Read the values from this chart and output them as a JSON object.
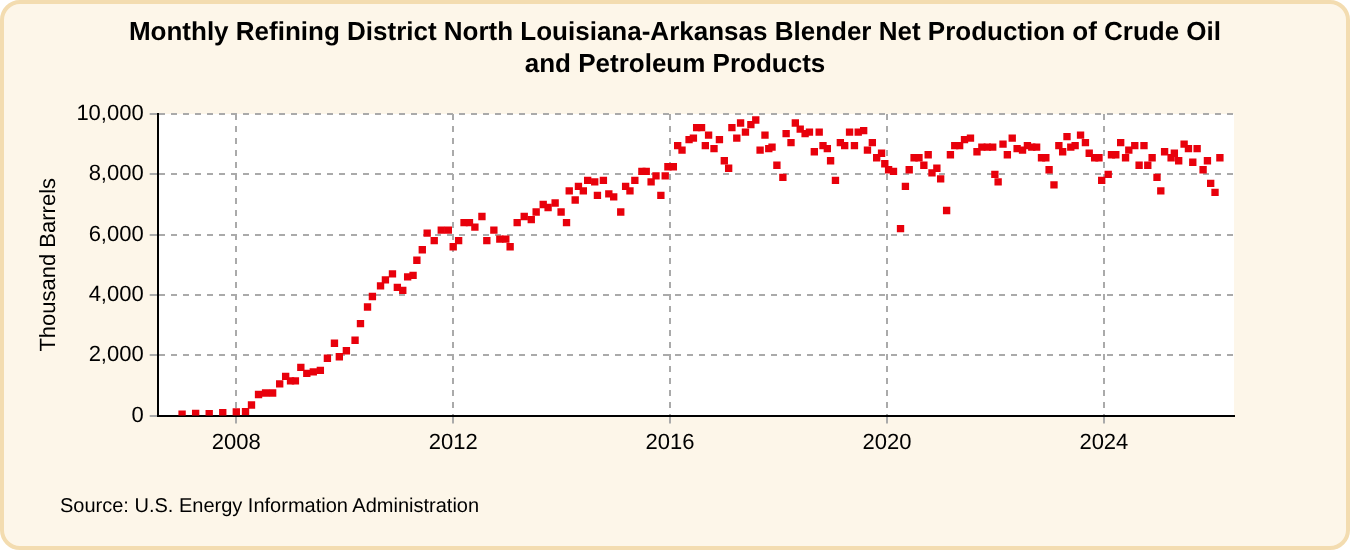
{
  "chart_data": {
    "type": "scatter",
    "title": "Monthly Refining District North Louisiana-Arkansas Blender Net Production of Crude Oil and Petroleum Products",
    "ylabel": "Thousand Barrels",
    "annotations": [
      "Source: U.S. Energy Information Administration"
    ],
    "marker": "square",
    "grid": true,
    "xlim": [
      2006.55,
      2026.4
    ],
    "xticks": [
      2008,
      2012,
      2016,
      2020,
      2024
    ],
    "ylim": [
      0,
      10000
    ],
    "yticks": [
      {
        "value": 0,
        "label": "0"
      },
      {
        "value": 2000,
        "label": "2,000"
      },
      {
        "value": 4000,
        "label": "4,000"
      },
      {
        "value": 6000,
        "label": "6,000"
      },
      {
        "value": 8000,
        "label": "8,000"
      },
      {
        "value": 10000,
        "label": "10,000"
      }
    ],
    "x": [
      2007.0,
      2007.25,
      2007.5,
      2007.75,
      2008.0,
      2008.17,
      2008.28,
      2008.41,
      2008.54,
      2008.67,
      2008.8,
      2008.91,
      2009.0,
      2009.09,
      2009.19,
      2009.3,
      2009.42,
      2009.55,
      2009.68,
      2009.81,
      2009.9,
      2010.03,
      2010.19,
      2010.29,
      2010.42,
      2010.51,
      2010.66,
      2010.75,
      2010.88,
      2010.97,
      2011.07,
      2011.16,
      2011.26,
      2011.33,
      2011.43,
      2011.52,
      2011.65,
      2011.78,
      2011.91,
      2012.0,
      2012.1,
      2012.2,
      2012.3,
      2012.4,
      2012.53,
      2012.62,
      2012.75,
      2012.86,
      2012.97,
      2013.05,
      2013.18,
      2013.31,
      2013.44,
      2013.53,
      2013.66,
      2013.75,
      2013.88,
      2013.99,
      2014.09,
      2014.14,
      2014.25,
      2014.31,
      2014.4,
      2014.48,
      2014.61,
      2014.66,
      2014.77,
      2014.87,
      2014.96,
      2015.09,
      2015.18,
      2015.26,
      2015.35,
      2015.48,
      2015.56,
      2015.65,
      2015.74,
      2015.83,
      2015.91,
      2015.96,
      2016.06,
      2016.14,
      2016.22,
      2016.35,
      2016.43,
      2016.49,
      2016.58,
      2016.65,
      2016.71,
      2016.81,
      2016.91,
      2017.0,
      2017.08,
      2017.14,
      2017.23,
      2017.3,
      2017.39,
      2017.49,
      2017.58,
      2017.66,
      2017.75,
      2017.82,
      2017.88,
      2017.97,
      2018.08,
      2018.14,
      2018.23,
      2018.31,
      2018.4,
      2018.49,
      2018.57,
      2018.66,
      2018.75,
      2018.82,
      2018.9,
      2018.96,
      2019.05,
      2019.14,
      2019.22,
      2019.31,
      2019.4,
      2019.47,
      2019.57,
      2019.64,
      2019.73,
      2019.81,
      2019.9,
      2019.96,
      2020.03,
      2020.12,
      2020.25,
      2020.34,
      2020.41,
      2020.5,
      2020.59,
      2020.68,
      2020.76,
      2020.83,
      2020.92,
      2020.99,
      2021.1,
      2021.17,
      2021.25,
      2021.34,
      2021.43,
      2021.54,
      2021.66,
      2021.75,
      2021.85,
      2021.95,
      2021.99,
      2022.05,
      2022.14,
      2022.22,
      2022.31,
      2022.4,
      2022.5,
      2022.59,
      2022.67,
      2022.76,
      2022.85,
      2022.93,
      2022.99,
      2023.08,
      2023.17,
      2023.24,
      2023.32,
      2023.39,
      2023.47,
      2023.57,
      2023.66,
      2023.73,
      2023.83,
      2023.91,
      2023.96,
      2024.08,
      2024.14,
      2024.22,
      2024.31,
      2024.4,
      2024.46,
      2024.57,
      2024.65,
      2024.74,
      2024.81,
      2024.89,
      2024.98,
      2025.05,
      2025.12,
      2025.24,
      2025.3,
      2025.38,
      2025.48,
      2025.56,
      2025.64,
      2025.72,
      2025.83,
      2025.91,
      2025.97,
      2026.05,
      2026.14
    ],
    "series": [
      {
        "color": "#e8000b",
        "values": [
          50,
          70,
          60,
          100,
          120,
          130,
          350,
          700,
          750,
          750,
          1050,
          1300,
          1150,
          1150,
          1600,
          1400,
          1450,
          1500,
          1900,
          2400,
          1950,
          2150,
          2500,
          3050,
          3600,
          3950,
          4300,
          4500,
          4700,
          4250,
          4150,
          4600,
          4650,
          5150,
          5500,
          6050,
          5800,
          6150,
          6150,
          5600,
          5800,
          6400,
          6400,
          6250,
          6600,
          5800,
          6150,
          5850,
          5850,
          5600,
          6400,
          6600,
          6500,
          6750,
          7000,
          6900,
          7050,
          6750,
          6400,
          7450,
          7150,
          7600,
          7450,
          7800,
          7750,
          7300,
          7800,
          7350,
          7250,
          6750,
          7600,
          7450,
          7800,
          8100,
          8100,
          7750,
          7950,
          7300,
          7950,
          8250,
          8250,
          8950,
          8800,
          9150,
          9200,
          9550,
          9550,
          8950,
          9300,
          8850,
          9150,
          8450,
          8200,
          9550,
          9200,
          9700,
          9400,
          9650,
          9800,
          8800,
          9300,
          8850,
          8900,
          8300,
          7900,
          9350,
          9050,
          9700,
          9500,
          9350,
          9400,
          8750,
          9400,
          8950,
          8850,
          8450,
          7800,
          9050,
          8950,
          9400,
          8950,
          9400,
          9450,
          8800,
          9050,
          8550,
          8700,
          8350,
          8150,
          8100,
          6200,
          7600,
          8150,
          8550,
          8550,
          8300,
          8650,
          8050,
          8200,
          7850,
          6800,
          8650,
          8950,
          8950,
          9150,
          9200,
          8750,
          8900,
          8900,
          8900,
          8000,
          7750,
          9000,
          8650,
          9200,
          8850,
          8800,
          8950,
          8900,
          8900,
          8550,
          8550,
          8150,
          7650,
          8950,
          8750,
          9250,
          8900,
          8950,
          9300,
          9050,
          8700,
          8550,
          8550,
          7800,
          8000,
          8650,
          8650,
          9050,
          8550,
          8800,
          8950,
          8300,
          8950,
          8300,
          8550,
          7900,
          7450,
          8750,
          8550,
          8700,
          8450,
          9000,
          8850,
          8400,
          8850,
          8150,
          8450,
          7700,
          7400,
          8550
        ]
      }
    ]
  }
}
